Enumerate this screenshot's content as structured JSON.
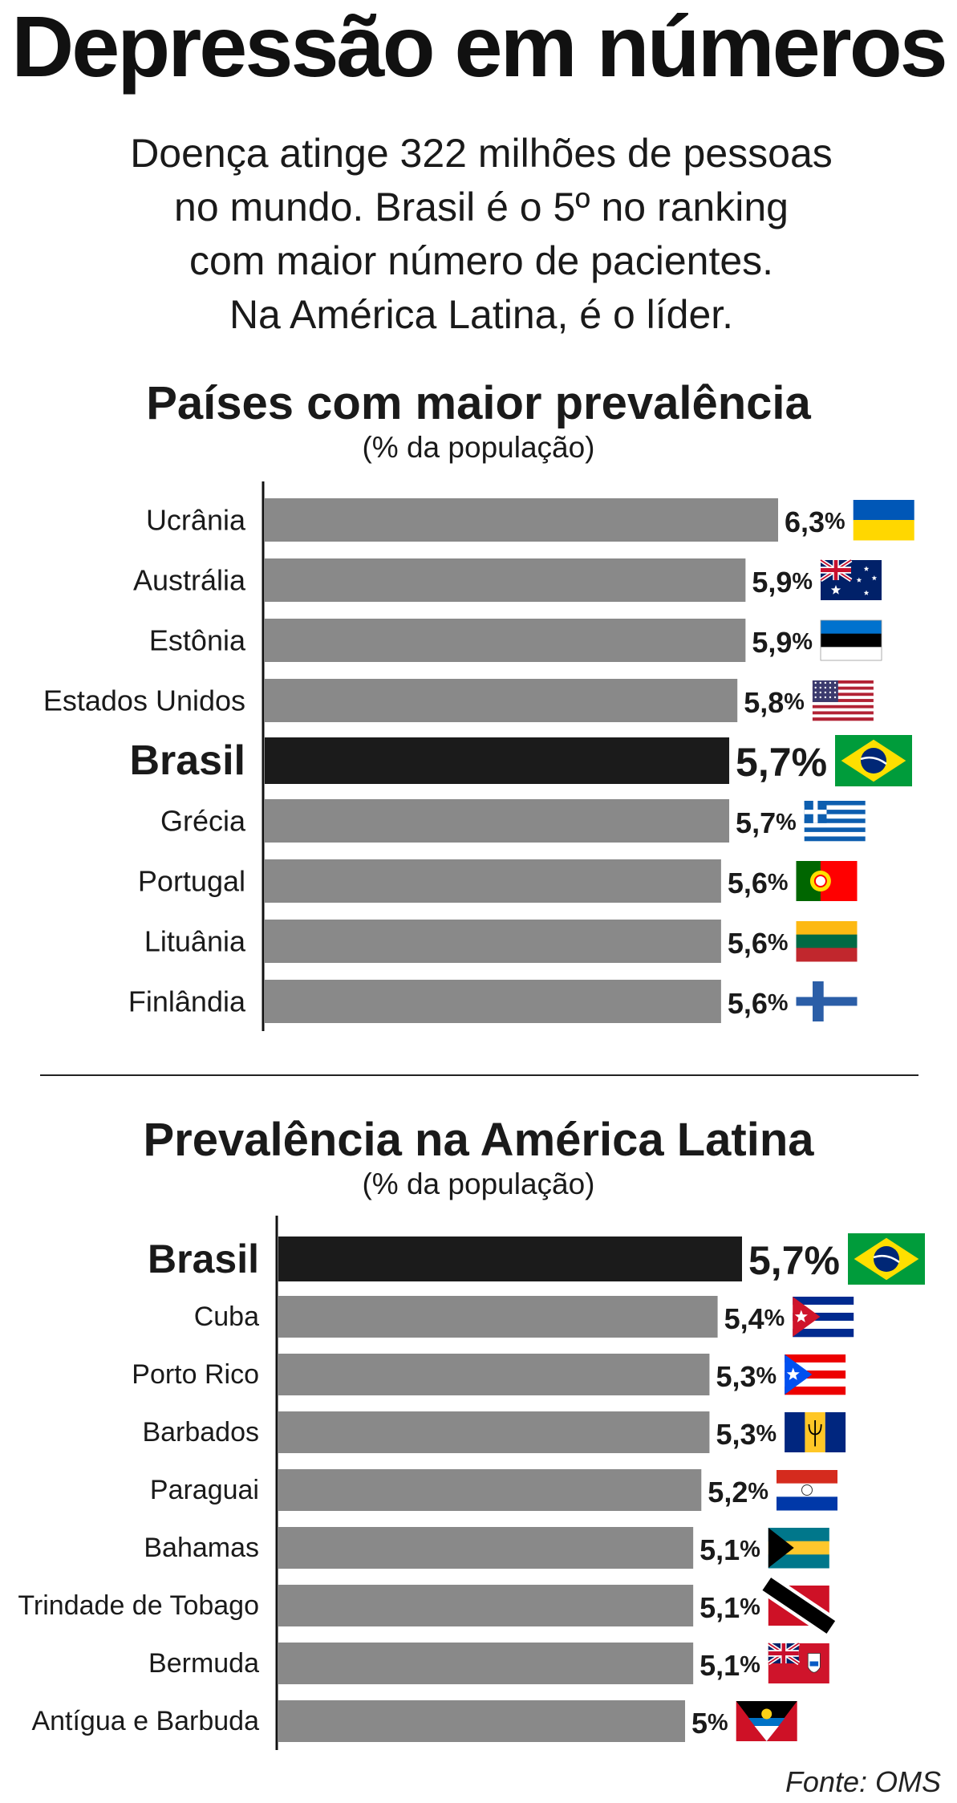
{
  "title": "Depressão em números",
  "subtitle_lines": [
    "Doença atinge 322 milhões de pessoas",
    "no mundo. Brasil é o 5º no ranking",
    "com maior número de pacientes.",
    "Na América Latina, é o líder."
  ],
  "source": "Fonte: OMS",
  "colors": {
    "bar": "#898989",
    "highlight": "#1b1b1b",
    "axis": "#111111"
  },
  "chart_data": [
    {
      "type": "bar",
      "orientation": "horizontal",
      "title": "Países com maior prevalência",
      "subtitle": "(% da população)",
      "unit": "%",
      "xlim": [
        0,
        6.3
      ],
      "highlight": "Brasil",
      "categories": [
        "Ucrânia",
        "Austrália",
        "Estônia",
        "Estados Unidos",
        "Brasil",
        "Grécia",
        "Portugal",
        "Lituânia",
        "Finlândia"
      ],
      "values": [
        6.3,
        5.9,
        5.9,
        5.8,
        5.7,
        5.7,
        5.6,
        5.6,
        5.6
      ],
      "value_labels": [
        "6,3",
        "5,9",
        "5,9",
        "5,8",
        "5,7",
        "5,7",
        "5,6",
        "5,6",
        "5,6"
      ],
      "flags": [
        "flag-ukraine-icon",
        "flag-australia-icon",
        "flag-estonia-icon",
        "flag-usa-icon",
        "flag-brazil-icon",
        "flag-greece-icon",
        "flag-portugal-icon",
        "flag-lithuania-icon",
        "flag-finland-icon"
      ]
    },
    {
      "type": "bar",
      "orientation": "horizontal",
      "title": "Prevalência na América Latina",
      "subtitle": "(% da população)",
      "unit": "%",
      "xlim": [
        0,
        5.7
      ],
      "highlight": "Brasil",
      "categories": [
        "Brasil",
        "Cuba",
        "Porto Rico",
        "Barbados",
        "Paraguai",
        "Bahamas",
        "Trindade de Tobago",
        "Bermuda",
        "Antígua e Barbuda"
      ],
      "values": [
        5.7,
        5.4,
        5.3,
        5.3,
        5.2,
        5.1,
        5.1,
        5.1,
        5.0
      ],
      "value_labels": [
        "5,7",
        "5,4",
        "5,3",
        "5,3",
        "5,2",
        "5,1",
        "5,1",
        "5,1",
        "5"
      ],
      "flags": [
        "flag-brazil-icon",
        "flag-cuba-icon",
        "flag-puerto-rico-icon",
        "flag-barbados-icon",
        "flag-paraguay-icon",
        "flag-bahamas-icon",
        "flag-trinidad-tobago-icon",
        "flag-bermuda-icon",
        "flag-antigua-barbuda-icon"
      ]
    }
  ]
}
